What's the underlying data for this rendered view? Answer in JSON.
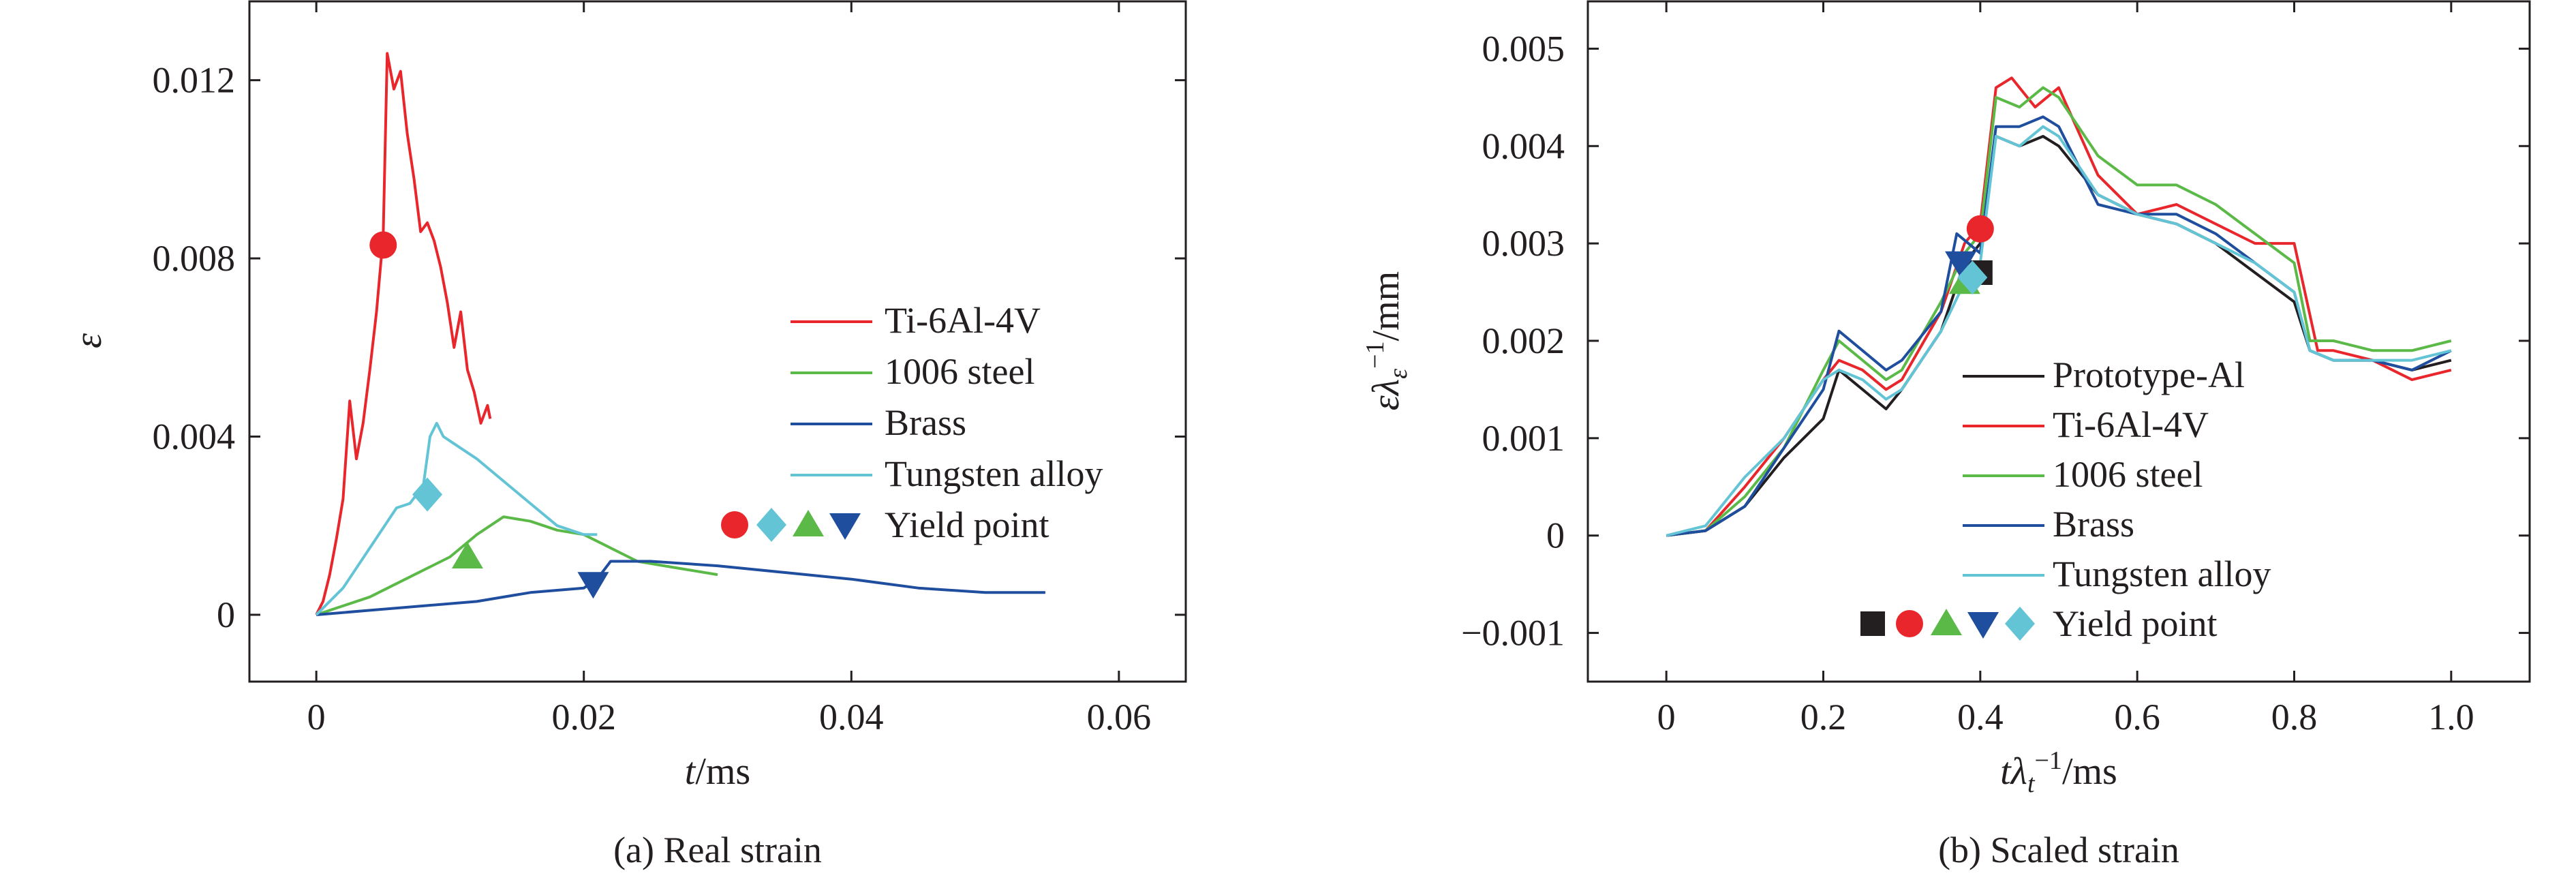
{
  "chart_data": [
    {
      "type": "line",
      "caption": "(a) Real strain",
      "xlabel": "t/ms",
      "ylabel": "ε",
      "xlim": [
        -0.005,
        0.065
      ],
      "ylim": [
        -0.0015,
        0.0138
      ],
      "xticks": [
        0,
        0.02,
        0.04,
        0.06
      ],
      "xtick_labels": [
        "0",
        "0.02",
        "0.04",
        "0.06"
      ],
      "yticks": [
        0,
        0.004,
        0.008,
        0.012
      ],
      "ytick_labels": [
        "0",
        "0.004",
        "0.008",
        "0.012"
      ],
      "grid": false,
      "legend_position": "right",
      "yield_point_label": "Yield point",
      "series": [
        {
          "name": "Ti-6Al-4V",
          "color": "#e8262b",
          "x": [
            0,
            0.0005,
            0.001,
            0.0015,
            0.002,
            0.0025,
            0.003,
            0.0035,
            0.004,
            0.0045,
            0.005,
            0.0053,
            0.0058,
            0.0063,
            0.0068,
            0.0073,
            0.0078,
            0.0083,
            0.0088,
            0.0093,
            0.0098,
            0.0103,
            0.0108,
            0.0113,
            0.0118,
            0.0123,
            0.0128,
            0.013
          ],
          "y": [
            0,
            0.0003,
            0.0009,
            0.0017,
            0.0026,
            0.0048,
            0.0035,
            0.0043,
            0.0055,
            0.0068,
            0.0085,
            0.0126,
            0.0118,
            0.0122,
            0.0108,
            0.0098,
            0.0086,
            0.0088,
            0.0084,
            0.0078,
            0.007,
            0.006,
            0.0068,
            0.0055,
            0.005,
            0.0043,
            0.0047,
            0.0044
          ]
        },
        {
          "name": "1006 steel",
          "color": "#5bb947",
          "x": [
            0,
            0.002,
            0.004,
            0.006,
            0.008,
            0.01,
            0.012,
            0.014,
            0.016,
            0.018,
            0.02,
            0.022,
            0.024,
            0.026,
            0.028,
            0.03
          ],
          "y": [
            0,
            0.0002,
            0.0004,
            0.0007,
            0.001,
            0.0013,
            0.0018,
            0.0022,
            0.0021,
            0.0019,
            0.0018,
            0.0015,
            0.0012,
            0.0011,
            0.001,
            0.0009
          ]
        },
        {
          "name": "Brass",
          "color": "#1f4e9e",
          "x": [
            0,
            0.004,
            0.008,
            0.012,
            0.016,
            0.02,
            0.021,
            0.022,
            0.025,
            0.03,
            0.035,
            0.04,
            0.045,
            0.05,
            0.0545
          ],
          "y": [
            0,
            0.0001,
            0.0002,
            0.0003,
            0.0005,
            0.0006,
            0.0008,
            0.0012,
            0.0012,
            0.0011,
            0.00095,
            0.0008,
            0.0006,
            0.0005,
            0.0005
          ]
        },
        {
          "name": "Tungsten alloy",
          "color": "#62c4d5",
          "x": [
            0,
            0.002,
            0.004,
            0.006,
            0.007,
            0.008,
            0.0085,
            0.009,
            0.0095,
            0.0105,
            0.012,
            0.014,
            0.016,
            0.018,
            0.02,
            0.021
          ],
          "y": [
            0,
            0.0006,
            0.0015,
            0.0024,
            0.0025,
            0.0029,
            0.004,
            0.0043,
            0.004,
            0.0038,
            0.0035,
            0.003,
            0.0025,
            0.002,
            0.0018,
            0.0018
          ]
        }
      ],
      "yield_points": [
        {
          "series": "Ti-6Al-4V",
          "marker": "circle",
          "x": 0.005,
          "y": 0.0083
        },
        {
          "series": "Tungsten alloy",
          "marker": "diamond",
          "x": 0.0083,
          "y": 0.0027
        },
        {
          "series": "1006 steel",
          "marker": "triangle-up",
          "x": 0.0113,
          "y": 0.0013
        },
        {
          "series": "Brass",
          "marker": "triangle-down",
          "x": 0.0207,
          "y": 0.0007
        }
      ]
    },
    {
      "type": "line",
      "caption": "(b) Scaled strain",
      "xlabel": "tλt−1/ms",
      "ylabel": "ελε−1/mm",
      "xlim": [
        -0.1,
        1.1
      ],
      "ylim": [
        -0.0015,
        0.0055
      ],
      "xticks": [
        0,
        0.2,
        0.4,
        0.6,
        0.8,
        1.0
      ],
      "xtick_labels": [
        "0",
        "0.2",
        "0.4",
        "0.6",
        "0.8",
        "1.0"
      ],
      "yticks": [
        -0.001,
        0,
        0.001,
        0.002,
        0.003,
        0.004,
        0.005
      ],
      "ytick_labels": [
        "−0.001",
        "0",
        "0.001",
        "0.002",
        "0.003",
        "0.004",
        "0.005"
      ],
      "grid": false,
      "legend_position": "lower-center",
      "yield_point_label": "Yield point",
      "series": [
        {
          "name": "Prototype-Al",
          "color": "#231f20",
          "x": [
            0,
            0.05,
            0.1,
            0.15,
            0.2,
            0.22,
            0.25,
            0.28,
            0.3,
            0.35,
            0.38,
            0.4,
            0.42,
            0.45,
            0.48,
            0.5,
            0.55,
            0.6,
            0.65,
            0.7,
            0.75,
            0.8,
            0.82,
            0.85,
            0.9,
            0.95,
            1.0
          ],
          "y": [
            0,
            5e-05,
            0.0003,
            0.0008,
            0.0012,
            0.0017,
            0.0015,
            0.0013,
            0.0015,
            0.0021,
            0.0028,
            0.003,
            0.0041,
            0.004,
            0.0041,
            0.004,
            0.0035,
            0.0033,
            0.0032,
            0.003,
            0.0027,
            0.0024,
            0.0019,
            0.0018,
            0.0018,
            0.0017,
            0.0018
          ]
        },
        {
          "name": "Ti-6Al-4V",
          "color": "#e8262b",
          "x": [
            0,
            0.05,
            0.1,
            0.15,
            0.2,
            0.22,
            0.25,
            0.28,
            0.3,
            0.35,
            0.38,
            0.4,
            0.42,
            0.44,
            0.47,
            0.5,
            0.55,
            0.6,
            0.65,
            0.7,
            0.75,
            0.8,
            0.83,
            0.85,
            0.9,
            0.95,
            1.0
          ],
          "y": [
            0,
            5e-05,
            0.0005,
            0.001,
            0.0016,
            0.0018,
            0.0017,
            0.0015,
            0.0016,
            0.0023,
            0.003,
            0.0032,
            0.0046,
            0.0047,
            0.0044,
            0.0046,
            0.0037,
            0.0033,
            0.0034,
            0.0032,
            0.003,
            0.003,
            0.0019,
            0.0019,
            0.0018,
            0.0016,
            0.0017
          ]
        },
        {
          "name": "1006 steel",
          "color": "#5bb947",
          "x": [
            0,
            0.05,
            0.1,
            0.15,
            0.2,
            0.22,
            0.25,
            0.28,
            0.3,
            0.35,
            0.38,
            0.4,
            0.42,
            0.45,
            0.48,
            0.5,
            0.55,
            0.6,
            0.65,
            0.7,
            0.75,
            0.8,
            0.82,
            0.85,
            0.9,
            0.95,
            1.0
          ],
          "y": [
            0,
            5e-05,
            0.0004,
            0.0009,
            0.0017,
            0.002,
            0.0018,
            0.0016,
            0.0017,
            0.0024,
            0.0029,
            0.0031,
            0.0045,
            0.0044,
            0.0046,
            0.0045,
            0.0039,
            0.0036,
            0.0036,
            0.0034,
            0.0031,
            0.0028,
            0.002,
            0.002,
            0.0019,
            0.0019,
            0.002
          ]
        },
        {
          "name": "Brass",
          "color": "#1f4e9e",
          "x": [
            0,
            0.05,
            0.1,
            0.15,
            0.2,
            0.22,
            0.25,
            0.28,
            0.3,
            0.35,
            0.37,
            0.4,
            0.42,
            0.45,
            0.48,
            0.5,
            0.55,
            0.6,
            0.65,
            0.7,
            0.75,
            0.8,
            0.82,
            0.85,
            0.9,
            0.95,
            1.0
          ],
          "y": [
            0,
            5e-05,
            0.0003,
            0.0009,
            0.0015,
            0.0021,
            0.0019,
            0.0017,
            0.0018,
            0.0023,
            0.0031,
            0.0029,
            0.0042,
            0.0042,
            0.0043,
            0.0042,
            0.0034,
            0.0033,
            0.0033,
            0.0031,
            0.0028,
            0.0025,
            0.0019,
            0.0018,
            0.0018,
            0.0017,
            0.0019
          ]
        },
        {
          "name": "Tungsten alloy",
          "color": "#62c4d5",
          "x": [
            0,
            0.05,
            0.1,
            0.15,
            0.2,
            0.22,
            0.25,
            0.28,
            0.3,
            0.35,
            0.38,
            0.4,
            0.42,
            0.45,
            0.48,
            0.5,
            0.55,
            0.6,
            0.65,
            0.7,
            0.75,
            0.8,
            0.82,
            0.85,
            0.9,
            0.95,
            1.0
          ],
          "y": [
            0,
            0.0001,
            0.0006,
            0.001,
            0.0016,
            0.0017,
            0.0016,
            0.0014,
            0.0015,
            0.0021,
            0.0026,
            0.0028,
            0.0041,
            0.004,
            0.0042,
            0.0041,
            0.0035,
            0.0033,
            0.0032,
            0.003,
            0.0028,
            0.0025,
            0.0019,
            0.0018,
            0.0018,
            0.0018,
            0.0019
          ]
        }
      ],
      "yield_points": [
        {
          "series": "Prototype-Al",
          "marker": "square",
          "x": 0.4,
          "y": 0.0027
        },
        {
          "series": "Ti-6Al-4V",
          "marker": "circle",
          "x": 0.4,
          "y": 0.00315
        },
        {
          "series": "1006 steel",
          "marker": "triangle-up",
          "x": 0.38,
          "y": 0.0026
        },
        {
          "series": "Brass",
          "marker": "triangle-down",
          "x": 0.375,
          "y": 0.0028
        },
        {
          "series": "Tungsten alloy",
          "marker": "diamond",
          "x": 0.39,
          "y": 0.00265
        }
      ]
    }
  ]
}
